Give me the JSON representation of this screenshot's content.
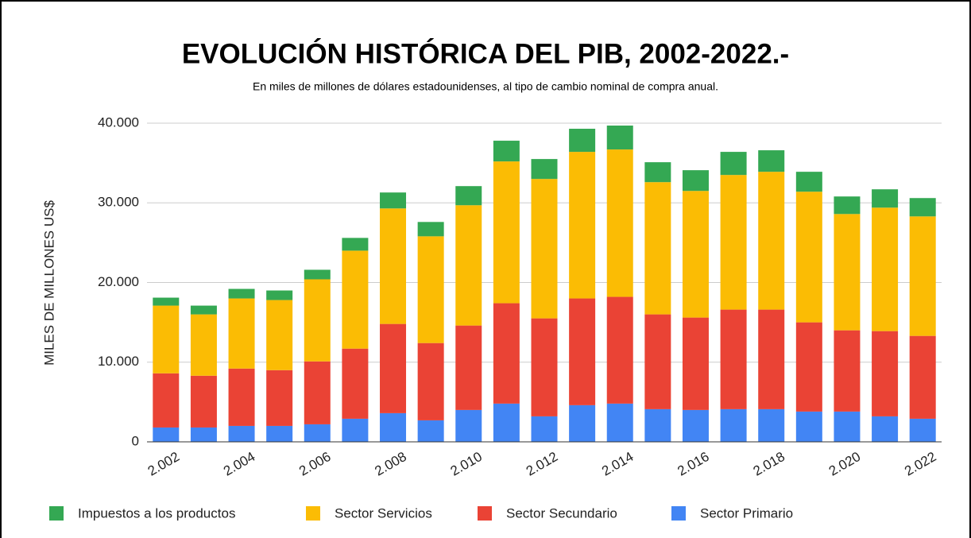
{
  "chart_data": {
    "type": "stacked_bar",
    "title": "EVOLUCIÓN HISTÓRICA DEL PIB, 2002-2022.-",
    "subtitle": "En miles de millones de dólares estadounidenses, al tipo de cambio nominal de compra anual.",
    "y_label": "MILES DE MILLONES US$",
    "categories": [
      "2.002",
      null,
      "2.004",
      null,
      "2.006",
      null,
      "2.008",
      null,
      "2.010",
      null,
      "2.012",
      null,
      "2.014",
      null,
      "2.016",
      null,
      "2.018",
      null,
      "2.020",
      null,
      "2.022"
    ],
    "series": [
      {
        "name": "Sector Primario",
        "color": "#4285f4",
        "values": [
          1800,
          1800,
          2000,
          2000,
          2200,
          2900,
          3600,
          2700,
          4000,
          4800,
          3200,
          4600,
          4800,
          4100,
          4000,
          4100,
          4100,
          3800,
          3800,
          3200,
          2900
        ]
      },
      {
        "name": "Sector Secundario",
        "color": "#ea4335",
        "values": [
          6800,
          6500,
          7200,
          7000,
          7900,
          8800,
          11200,
          9700,
          10600,
          12600,
          12300,
          13400,
          13400,
          11900,
          11600,
          12500,
          12500,
          11200,
          10200,
          10700,
          10400
        ]
      },
      {
        "name": "Sector Servicios",
        "color": "#fbbc04",
        "values": [
          8500,
          7700,
          8800,
          8800,
          10300,
          12300,
          14500,
          13400,
          15100,
          17800,
          17500,
          18400,
          18500,
          16600,
          15900,
          16900,
          17300,
          16400,
          14600,
          15500,
          15000
        ]
      },
      {
        "name": "Impuestos a los productos",
        "color": "#34a853",
        "values": [
          1000,
          1100,
          1200,
          1200,
          1200,
          1600,
          2000,
          1800,
          2400,
          2600,
          2500,
          2900,
          3000,
          2500,
          2600,
          2900,
          2700,
          2500,
          2200,
          2300,
          2300
        ]
      }
    ],
    "ylim": [
      0,
      40000
    ],
    "yticks": [
      0,
      {
        "value": 10000,
        "label": "10.000"
      },
      {
        "value": 20000,
        "label": "20.000"
      },
      {
        "value": 30000,
        "label": "30.000"
      },
      {
        "value": 40000,
        "label": "40.000"
      }
    ],
    "grid": true,
    "legend": "bottom"
  }
}
